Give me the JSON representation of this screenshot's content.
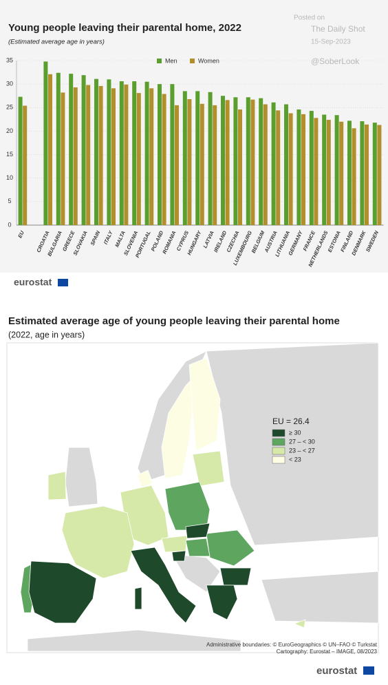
{
  "chart_data": {
    "type": "bar",
    "title": "Young people leaving their parental home, 2022",
    "subtitle": "(Estimated average age in years)",
    "categories": [
      "EU",
      null,
      "CROATIA",
      "BULGARIA",
      "GREECE",
      "SLOVAKIA",
      "SPAIN",
      "ITALY",
      "MALTA",
      "SLOVENIA",
      "PORTUGAL",
      "POLAND",
      "ROMANIA",
      "CYPRUS",
      "HUNGARY",
      "LATVIA",
      "IRELAND",
      "CZECHIA",
      "LUXEMBOURG",
      "BELGIUM",
      "AUSTRIA",
      "LITHUANIA",
      "GERMANY",
      "FRANCE",
      "NETHERLANDS",
      "ESTONIA",
      "FINLAND",
      "DENMARK",
      "SWEDEN"
    ],
    "series": [
      {
        "name": "Men",
        "color": "#5a9f2e",
        "values": [
          27.3,
          null,
          34.8,
          32.4,
          32.2,
          31.9,
          31.1,
          31.0,
          30.6,
          30.6,
          30.5,
          30.0,
          30.0,
          28.5,
          28.5,
          28.3,
          27.5,
          27.2,
          27.2,
          27.0,
          26.1,
          25.7,
          24.6,
          24.3,
          23.5,
          23.4,
          22.2,
          22.1,
          21.8
        ]
      },
      {
        "name": "Women",
        "color": "#b08f2c",
        "values": [
          25.4,
          null,
          32.1,
          28.2,
          29.3,
          29.8,
          29.6,
          29.1,
          29.9,
          28.1,
          29.1,
          27.9,
          25.5,
          26.8,
          25.8,
          25.5,
          26.6,
          24.6,
          26.7,
          25.7,
          24.4,
          23.8,
          23.6,
          22.8,
          22.4,
          22.0,
          20.6,
          21.4,
          21.3
        ]
      }
    ],
    "ylim": [
      0,
      35
    ],
    "yticks": [
      0,
      5,
      10,
      15,
      20,
      25,
      30,
      35
    ],
    "grid": true,
    "legend": "top"
  },
  "watermark": {
    "posted": "Posted on",
    "source": "The Daily Shot",
    "date": "15-Sep-2023",
    "handle": "@SoberLook"
  },
  "logo_top": "eurostat",
  "map": {
    "title": "Estimated average age of young people leaving their parental home",
    "subtitle": "(2022, age in years)",
    "legend_title": "EU = 26.4",
    "legend": [
      {
        "label": "≥ 30",
        "color": "#1e4a2b"
      },
      {
        "label": "27 – < 30",
        "color": "#5ea660"
      },
      {
        "label": "23 – < 27",
        "color": "#d6e9a8"
      },
      {
        "label": "< 23",
        "color": "#fdfde4"
      }
    ],
    "credits": [
      "Administrative boundaries: © EuroGeographics © UN–FAO © Turkstat",
      "Cartography: Eurostat – IMAGE, 08/2023"
    ]
  },
  "logo_bottom": "eurostat"
}
